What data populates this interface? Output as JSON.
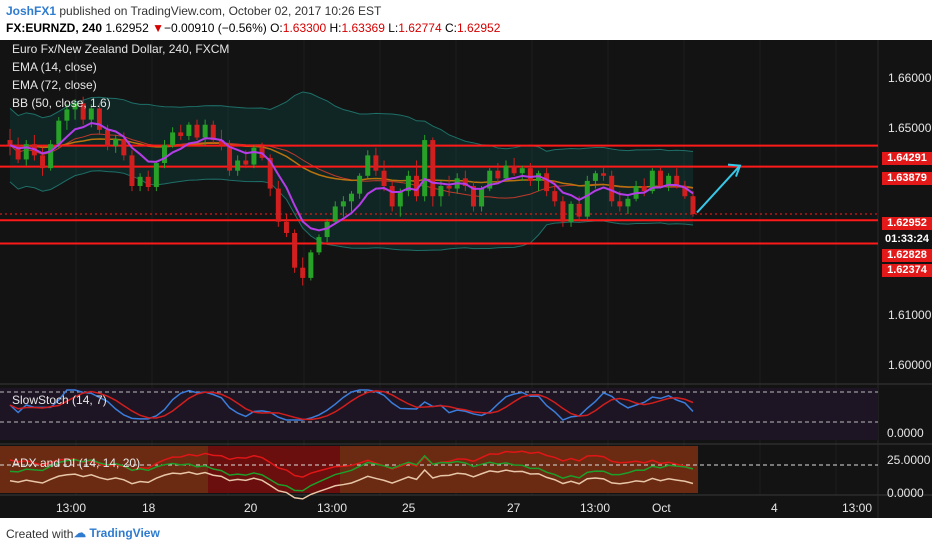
{
  "header": {
    "username": "JoshFX1",
    "published_text": "published on TradingView.com, October 02, 2017 10:26 EST",
    "symbol": "FX:EURNZD, 240",
    "last": "1.62952",
    "change_arrow": "▼",
    "change": "−0.00910 (−0.56%)",
    "open_label": "O:",
    "open": "1.63300",
    "high_label": "H:",
    "high": "1.63369",
    "low_label": "L:",
    "low": "1.62774",
    "close_label": "C:",
    "close": "1.62952"
  },
  "legend": {
    "title": "Euro Fx/New Zealand Dollar, 240, FXCM",
    "ema14": "EMA (14, close)",
    "ema72": "EMA (72, close)",
    "bb": "BB (50, close, 1.6)",
    "stoch": "SlowStoch (14, 7)",
    "adx": "ADX and DI (14, 14, 20)"
  },
  "price_axis": {
    "ticks": [
      "1.66000",
      "1.65000",
      "1.61000",
      "1.60000"
    ],
    "tags": [
      {
        "label": "1.64291",
        "style": "red"
      },
      {
        "label": "1.63879",
        "style": "red"
      },
      {
        "label": "1.62952",
        "style": "red"
      },
      {
        "label": "01:33:24",
        "style": "dark"
      },
      {
        "label": "1.62828",
        "style": "red"
      },
      {
        "label": "1.62374",
        "style": "red"
      }
    ],
    "stoch_ticks": [
      "0.0000"
    ],
    "adx_ticks": [
      "25.0000",
      "0.0000"
    ]
  },
  "time_axis": [
    "13:00",
    "18",
    "20",
    "13:00",
    "25",
    "27",
    "13:00",
    "Oct",
    "4",
    "13:00"
  ],
  "footer": {
    "created": "Created with",
    "brand": "TradingView"
  },
  "colors": {
    "background": "#131313",
    "up": "#27a127",
    "down": "#d11e1e",
    "ema14": "#b43de8",
    "ema72": "#b8730e",
    "bb": "#0c4a46",
    "level": "#ff1a1a",
    "arrow": "#37c8e8"
  },
  "chart_data": {
    "type": "candlestick",
    "title": "Euro Fx/New Zealand Dollar, 240, FXCM",
    "ylim": [
      1.597,
      1.6636
    ],
    "horizontal_levels": [
      1.64291,
      1.63879,
      1.62828,
      1.62374
    ],
    "last_price": 1.62952,
    "candles": [
      [
        1.644,
        1.6462,
        1.641,
        1.643
      ],
      [
        1.643,
        1.6445,
        1.6395,
        1.6402
      ],
      [
        1.6402,
        1.644,
        1.639,
        1.6432
      ],
      [
        1.6432,
        1.645,
        1.64,
        1.641
      ],
      [
        1.641,
        1.6425,
        1.637,
        1.6385
      ],
      [
        1.6385,
        1.644,
        1.638,
        1.6432
      ],
      [
        1.6432,
        1.6485,
        1.6425,
        1.6478
      ],
      [
        1.6478,
        1.651,
        1.646,
        1.65
      ],
      [
        1.65,
        1.652,
        1.648,
        1.6512
      ],
      [
        1.6512,
        1.6525,
        1.647,
        1.648
      ],
      [
        1.648,
        1.651,
        1.6465,
        1.6502
      ],
      [
        1.6502,
        1.6512,
        1.645,
        1.646
      ],
      [
        1.646,
        1.647,
        1.642,
        1.6428
      ],
      [
        1.6428,
        1.645,
        1.6415,
        1.6442
      ],
      [
        1.6442,
        1.6455,
        1.64,
        1.641
      ],
      [
        1.641,
        1.642,
        1.634,
        1.635
      ],
      [
        1.635,
        1.6375,
        1.634,
        1.6368
      ],
      [
        1.6368,
        1.638,
        1.634,
        1.6348
      ],
      [
        1.6348,
        1.64,
        1.634,
        1.6395
      ],
      [
        1.6395,
        1.644,
        1.6385,
        1.643
      ],
      [
        1.643,
        1.6465,
        1.6425,
        1.6455
      ],
      [
        1.6455,
        1.647,
        1.644,
        1.6448
      ],
      [
        1.6448,
        1.6475,
        1.644,
        1.647
      ],
      [
        1.647,
        1.648,
        1.644,
        1.6445
      ],
      [
        1.6445,
        1.648,
        1.643,
        1.647
      ],
      [
        1.647,
        1.6478,
        1.6435,
        1.644
      ],
      [
        1.644,
        1.646,
        1.642,
        1.643
      ],
      [
        1.643,
        1.644,
        1.637,
        1.638
      ],
      [
        1.638,
        1.641,
        1.637,
        1.64
      ],
      [
        1.64,
        1.642,
        1.6385,
        1.6392
      ],
      [
        1.6392,
        1.643,
        1.6385,
        1.6425
      ],
      [
        1.6425,
        1.6435,
        1.64,
        1.6405
      ],
      [
        1.6405,
        1.6412,
        1.633,
        1.6345
      ],
      [
        1.6345,
        1.636,
        1.627,
        1.628
      ],
      [
        1.628,
        1.6295,
        1.625,
        1.6258
      ],
      [
        1.6258,
        1.6265,
        1.618,
        1.619
      ],
      [
        1.619,
        1.621,
        1.6155,
        1.617
      ],
      [
        1.617,
        1.6225,
        1.6165,
        1.622
      ],
      [
        1.622,
        1.6255,
        1.6215,
        1.625
      ],
      [
        1.625,
        1.6285,
        1.624,
        1.628
      ],
      [
        1.628,
        1.632,
        1.6275,
        1.631
      ],
      [
        1.631,
        1.633,
        1.629,
        1.632
      ],
      [
        1.632,
        1.634,
        1.63,
        1.6335
      ],
      [
        1.6335,
        1.6375,
        1.6325,
        1.637
      ],
      [
        1.637,
        1.642,
        1.6365,
        1.641
      ],
      [
        1.641,
        1.6425,
        1.637,
        1.638
      ],
      [
        1.638,
        1.64,
        1.634,
        1.635
      ],
      [
        1.635,
        1.636,
        1.63,
        1.631
      ],
      [
        1.631,
        1.6345,
        1.629,
        1.634
      ],
      [
        1.634,
        1.638,
        1.633,
        1.637
      ],
      [
        1.637,
        1.64,
        1.632,
        1.633
      ],
      [
        1.633,
        1.645,
        1.632,
        1.644
      ],
      [
        1.644,
        1.6445,
        1.631,
        1.633
      ],
      [
        1.633,
        1.636,
        1.631,
        1.635
      ],
      [
        1.635,
        1.637,
        1.633,
        1.6345
      ],
      [
        1.6345,
        1.6375,
        1.6335,
        1.6365
      ],
      [
        1.6365,
        1.638,
        1.634,
        1.635
      ],
      [
        1.635,
        1.636,
        1.63,
        1.631
      ],
      [
        1.631,
        1.635,
        1.63,
        1.6345
      ],
      [
        1.6345,
        1.6385,
        1.634,
        1.638
      ],
      [
        1.638,
        1.6395,
        1.6355,
        1.6365
      ],
      [
        1.6365,
        1.64,
        1.636,
        1.639
      ],
      [
        1.639,
        1.6405,
        1.637,
        1.6375
      ],
      [
        1.6375,
        1.639,
        1.636,
        1.6385
      ],
      [
        1.6385,
        1.6395,
        1.635,
        1.636
      ],
      [
        1.636,
        1.638,
        1.634,
        1.6375
      ],
      [
        1.6375,
        1.6385,
        1.633,
        1.634
      ],
      [
        1.634,
        1.636,
        1.631,
        1.632
      ],
      [
        1.632,
        1.633,
        1.627,
        1.628
      ],
      [
        1.628,
        1.632,
        1.627,
        1.6315
      ],
      [
        1.6315,
        1.633,
        1.628,
        1.629
      ],
      [
        1.629,
        1.637,
        1.6285,
        1.636
      ],
      [
        1.636,
        1.638,
        1.6345,
        1.6375
      ],
      [
        1.6375,
        1.639,
        1.636,
        1.637
      ],
      [
        1.637,
        1.638,
        1.631,
        1.632
      ],
      [
        1.632,
        1.634,
        1.63,
        1.631
      ],
      [
        1.631,
        1.633,
        1.6295,
        1.6325
      ],
      [
        1.6325,
        1.636,
        1.632,
        1.635
      ],
      [
        1.635,
        1.6365,
        1.633,
        1.634
      ],
      [
        1.634,
        1.6385,
        1.6335,
        1.638
      ],
      [
        1.638,
        1.639,
        1.6345,
        1.635
      ],
      [
        1.635,
        1.6375,
        1.634,
        1.637
      ],
      [
        1.637,
        1.6385,
        1.6345,
        1.635
      ],
      [
        1.635,
        1.636,
        1.6325,
        1.633
      ],
      [
        1.633,
        1.634,
        1.629,
        1.6295
      ]
    ]
  }
}
